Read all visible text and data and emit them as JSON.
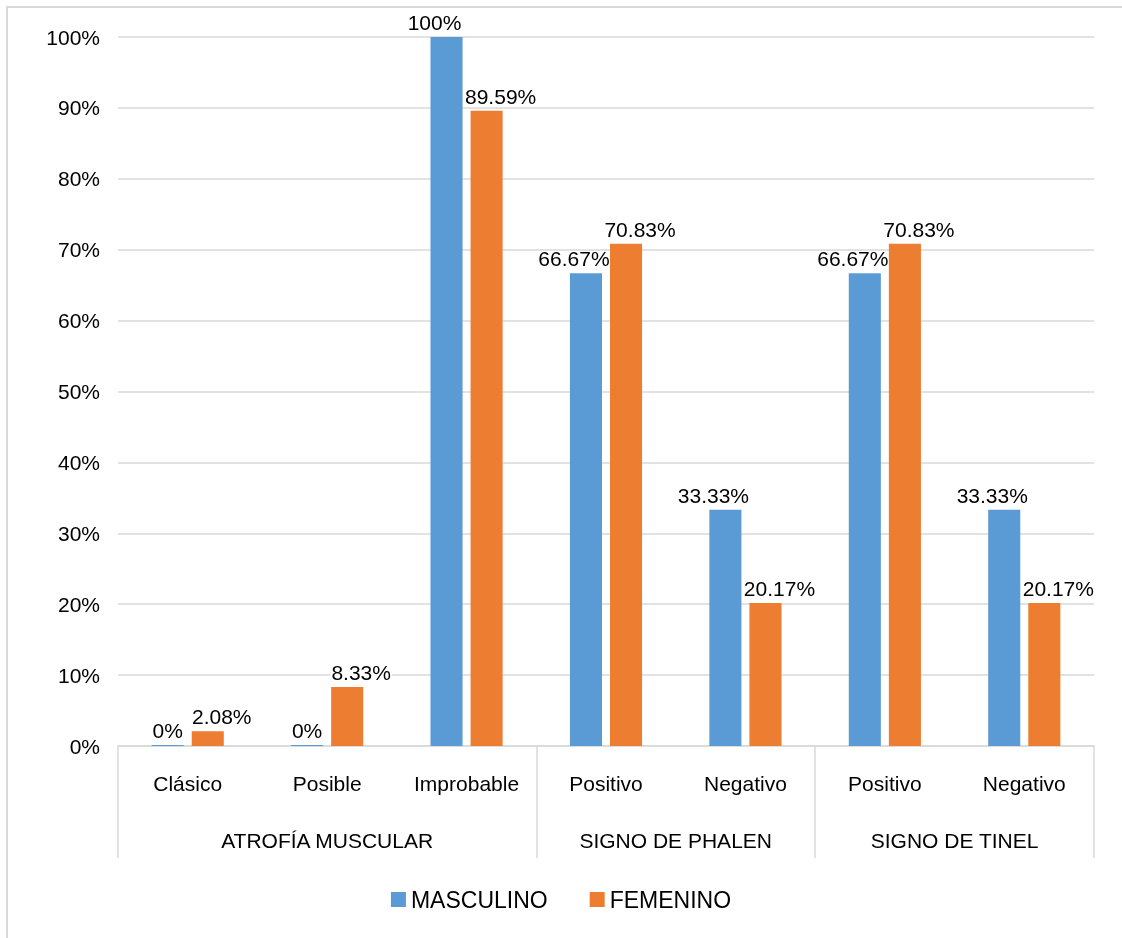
{
  "chart_data": {
    "type": "bar",
    "categories": [
      "Clásico",
      "Posible",
      "Improbable",
      "Positivo",
      "Negativo",
      "Positivo",
      "Negativo"
    ],
    "series": [
      {
        "name": "MASCULINO",
        "color": "#5b9bd5",
        "values": [
          0,
          0,
          100,
          66.67,
          33.33,
          66.67,
          33.33
        ],
        "value_labels": [
          "0%",
          "0%",
          "100%",
          "66.67%",
          "33.33%",
          "66.67%",
          "33.33%"
        ]
      },
      {
        "name": "FEMENINO",
        "color": "#ed7d31",
        "values": [
          2.08,
          8.33,
          89.59,
          70.83,
          20.17,
          70.83,
          20.17
        ],
        "value_labels": [
          "2.08%",
          "8.33%",
          "89.59%",
          "70.83%",
          "20.17%",
          "70.83%",
          "20.17%"
        ]
      }
    ],
    "ylim": [
      0,
      100
    ],
    "yticks": [
      {
        "value": 0,
        "label": "0%"
      },
      {
        "value": 10,
        "label": "10%"
      },
      {
        "value": 20,
        "label": "20%"
      },
      {
        "value": 30,
        "label": "30%"
      },
      {
        "value": 40,
        "label": "40%"
      },
      {
        "value": 50,
        "label": "50%"
      },
      {
        "value": 60,
        "label": "60%"
      },
      {
        "value": 70,
        "label": "70%"
      },
      {
        "value": 80,
        "label": "80%"
      },
      {
        "value": 90,
        "label": "90%"
      },
      {
        "value": 100,
        "label": "100%"
      }
    ],
    "grid": "y",
    "legend": "bottom",
    "annotations": [
      "ATROFÍA MUSCULAR",
      "SIGNO DE PHALEN",
      "SIGNO DE TINEL"
    ]
  }
}
